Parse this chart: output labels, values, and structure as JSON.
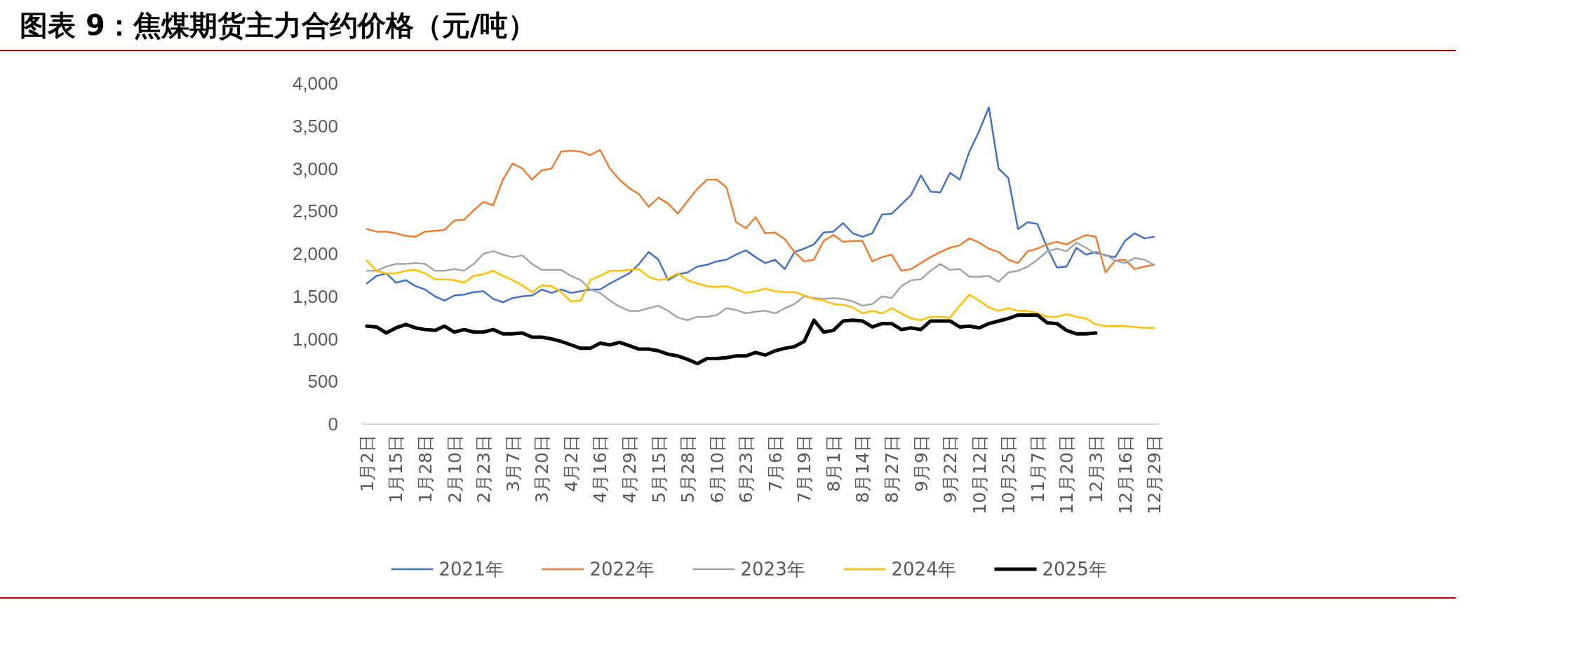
{
  "chart_data": {
    "type": "line",
    "title": "图表 9：焦煤期货主力合约价格（元/吨）",
    "categories": [
      "1月2日",
      null,
      null,
      "1月15日",
      null,
      null,
      "1月28日",
      null,
      null,
      "2月10日",
      null,
      null,
      "2月23日",
      null,
      null,
      "3月7日",
      null,
      null,
      "3月20日",
      null,
      null,
      "4月2日",
      null,
      null,
      "4月16日",
      null,
      null,
      "4月29日",
      null,
      null,
      "5月15日",
      null,
      null,
      "5月28日",
      null,
      null,
      "6月10日",
      null,
      null,
      "6月23日",
      null,
      null,
      "7月6日",
      null,
      null,
      "7月19日",
      null,
      null,
      "8月1日",
      null,
      null,
      "8月14日",
      null,
      null,
      "8月27日",
      null,
      null,
      "9月9日",
      null,
      null,
      "9月22日",
      null,
      null,
      "10月12日",
      null,
      null,
      "10月25日",
      null,
      null,
      "11月7日",
      null,
      null,
      "11月20日",
      null,
      null,
      "12月3日",
      null,
      null,
      "12月16日",
      null,
      null,
      "12月29日"
    ],
    "series": [
      {
        "name": "2021年",
        "color": "#4472c4",
        "values": [
          1650,
          1740,
          1770,
          1660,
          1690,
          1620,
          1580,
          1500,
          1450,
          1510,
          1520,
          1550,
          1560,
          1470,
          1430,
          1480,
          1500,
          1510,
          1580,
          1540,
          1580,
          1540,
          1560,
          1580,
          1580,
          1650,
          1710,
          1770,
          1880,
          2020,
          1930,
          1690,
          1760,
          1780,
          1850,
          1870,
          1910,
          1930,
          1990,
          2040,
          1960,
          1890,
          1930,
          1820,
          2020,
          2060,
          2110,
          2250,
          2260,
          2360,
          2240,
          2200,
          2240,
          2460,
          2470,
          2580,
          2690,
          2920,
          2730,
          2720,
          2950,
          2870,
          3200,
          3440,
          3720,
          3000,
          2890,
          2290,
          2370,
          2350,
          2070,
          1840,
          1850,
          2070,
          1990,
          2020,
          1980,
          1960,
          2150,
          2240,
          2180,
          2200
        ]
      },
      {
        "name": "2022年",
        "color": "#ed7d31",
        "values": [
          2290,
          2260,
          2260,
          2240,
          2210,
          2200,
          2260,
          2270,
          2280,
          2390,
          2400,
          2510,
          2610,
          2570,
          2870,
          3060,
          3000,
          2870,
          2980,
          3000,
          3200,
          3210,
          3200,
          3160,
          3220,
          3000,
          2870,
          2770,
          2700,
          2550,
          2660,
          2590,
          2470,
          2620,
          2760,
          2870,
          2870,
          2780,
          2370,
          2300,
          2430,
          2240,
          2250,
          2170,
          2020,
          1910,
          1930,
          2150,
          2220,
          2140,
          2150,
          2150,
          1910,
          1960,
          1990,
          1800,
          1820,
          1890,
          1960,
          2020,
          2070,
          2100,
          2180,
          2130,
          2060,
          2020,
          1930,
          1890,
          2030,
          2060,
          2110,
          2140,
          2110,
          2170,
          2220,
          2200,
          1780,
          1920,
          1930,
          1820,
          1850,
          1870
        ]
      },
      {
        "name": "2023年",
        "color": "#a5a5a5",
        "values": [
          1800,
          1800,
          1850,
          1880,
          1880,
          1890,
          1880,
          1800,
          1800,
          1820,
          1800,
          1880,
          2000,
          2030,
          1990,
          1960,
          1980,
          1880,
          1810,
          1810,
          1810,
          1740,
          1690,
          1580,
          1540,
          1450,
          1380,
          1330,
          1330,
          1360,
          1390,
          1330,
          1250,
          1220,
          1260,
          1260,
          1280,
          1360,
          1340,
          1300,
          1320,
          1330,
          1300,
          1360,
          1410,
          1500,
          1480,
          1470,
          1480,
          1470,
          1440,
          1390,
          1410,
          1500,
          1480,
          1620,
          1690,
          1700,
          1800,
          1880,
          1810,
          1820,
          1730,
          1730,
          1740,
          1670,
          1780,
          1800,
          1850,
          1930,
          2030,
          2060,
          2030,
          2130,
          2070,
          2000,
          1990,
          1920,
          1890,
          1950,
          1930,
          1870
        ]
      },
      {
        "name": "2024年",
        "color": "#ffc000",
        "values": [
          1920,
          1800,
          1770,
          1770,
          1800,
          1810,
          1770,
          1700,
          1700,
          1690,
          1660,
          1740,
          1760,
          1800,
          1740,
          1690,
          1630,
          1550,
          1630,
          1620,
          1550,
          1440,
          1450,
          1690,
          1740,
          1800,
          1800,
          1810,
          1820,
          1730,
          1690,
          1710,
          1770,
          1690,
          1650,
          1620,
          1610,
          1620,
          1580,
          1540,
          1560,
          1590,
          1560,
          1550,
          1550,
          1510,
          1470,
          1450,
          1410,
          1400,
          1370,
          1300,
          1330,
          1300,
          1360,
          1300,
          1240,
          1220,
          1260,
          1260,
          1250,
          1390,
          1520,
          1450,
          1370,
          1330,
          1360,
          1330,
          1330,
          1300,
          1260,
          1260,
          1290,
          1260,
          1240,
          1170,
          1150,
          1150,
          1150,
          1140,
          1130,
          1130
        ]
      },
      {
        "name": "2025年",
        "color": "#000000",
        "values": [
          1150,
          1140,
          1070,
          1130,
          1170,
          1130,
          1110,
          1100,
          1150,
          1080,
          1110,
          1080,
          1080,
          1110,
          1060,
          1060,
          1070,
          1020,
          1020,
          1000,
          970,
          930,
          890,
          890,
          950,
          930,
          960,
          920,
          880,
          880,
          860,
          820,
          800,
          760,
          710,
          770,
          770,
          780,
          800,
          800,
          840,
          810,
          860,
          890,
          910,
          970,
          1220,
          1080,
          1100,
          1210,
          1220,
          1210,
          1140,
          1180,
          1180,
          1110,
          1130,
          1110,
          1210,
          1210,
          1210,
          1140,
          1150,
          1130,
          1180,
          1210,
          1240,
          1280,
          1280,
          1280,
          1190,
          1180,
          1100,
          1060,
          1060,
          1070,
          null,
          null,
          null,
          null,
          null,
          null
        ]
      }
    ],
    "ylim": [
      0,
      4000
    ],
    "yticks": [
      0,
      500,
      {
        "value": 1000,
        "label": "1,000"
      },
      {
        "value": 1500,
        "label": "1,500"
      },
      {
        "value": 2000,
        "label": "2,000"
      },
      {
        "value": 2500,
        "label": "2,500"
      },
      {
        "value": 3000,
        "label": "3,000"
      },
      {
        "value": 3500,
        "label": "3,500"
      },
      {
        "value": 4000,
        "label": "4,000"
      }
    ],
    "legend": "bottom",
    "grid": false,
    "marker": "none",
    "line_style": "solid"
  }
}
